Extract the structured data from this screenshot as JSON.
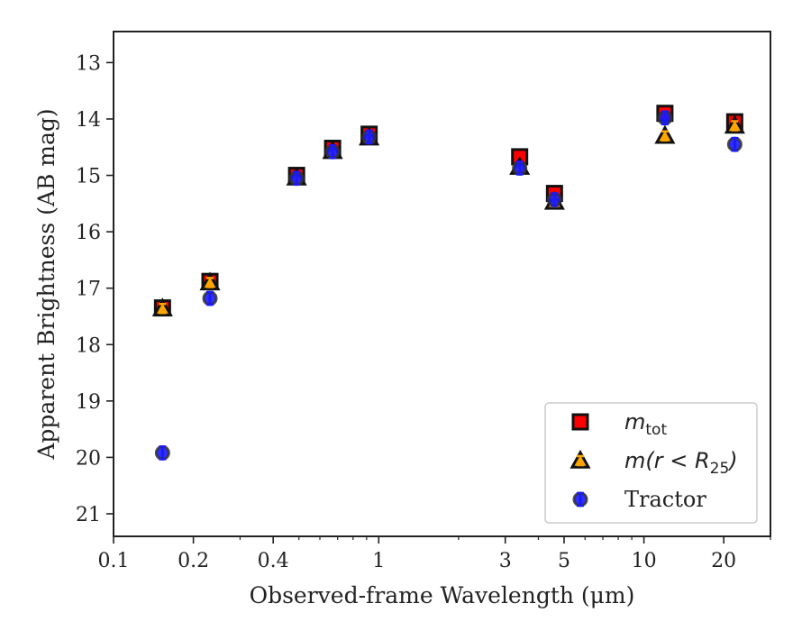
{
  "chart_data": {
    "type": "scatter",
    "x_scale": "log",
    "y_inverted": true,
    "xlabel": "Observed-frame Wavelength (μm)",
    "ylabel": "Apparent Brightness (AB mag)",
    "xlim": [
      0.1,
      30
    ],
    "ylim": [
      21.4,
      12.45
    ],
    "x_ticks": [
      {
        "value": 0.1,
        "label": "0.1"
      },
      {
        "value": 0.2,
        "label": "0.2"
      },
      {
        "value": 0.4,
        "label": "0.4"
      },
      {
        "value": 1,
        "label": "1"
      },
      {
        "value": 3,
        "label": "3"
      },
      {
        "value": 5,
        "label": "5"
      },
      {
        "value": 10,
        "label": "10"
      },
      {
        "value": 20,
        "label": "20"
      }
    ],
    "y_ticks": [
      13,
      14,
      15,
      16,
      17,
      18,
      19,
      20,
      21
    ],
    "grid": false,
    "legend": {
      "placement": "lower-right"
    },
    "series": [
      {
        "name": "m_tot",
        "legend_label": {
          "base": "m",
          "sub": "tot"
        },
        "marker": "square",
        "color": "#ff0000",
        "edge_color": "#111111",
        "error_color": "#ff0000",
        "points": [
          {
            "x": 0.153,
            "y": 17.35
          },
          {
            "x": 0.231,
            "y": 16.88
          },
          {
            "x": 0.49,
            "y": 15.0
          },
          {
            "x": 0.67,
            "y": 14.52
          },
          {
            "x": 0.92,
            "y": 14.27
          },
          {
            "x": 3.4,
            "y": 14.67
          },
          {
            "x": 4.6,
            "y": 15.32
          },
          {
            "x": 12.0,
            "y": 13.9
          },
          {
            "x": 22.0,
            "y": 14.05
          }
        ]
      },
      {
        "name": "m(r < R_25)",
        "legend_label": {
          "base": "m(r < R",
          "sub": "25",
          "tail": ")"
        },
        "marker": "triangle",
        "color": "#ffa500",
        "edge_color": "#111111",
        "error_color": "#ffa500",
        "points": [
          {
            "x": 0.153,
            "y": 17.36
          },
          {
            "x": 0.231,
            "y": 16.9
          },
          {
            "x": 0.49,
            "y": 15.04
          },
          {
            "x": 0.67,
            "y": 14.57
          },
          {
            "x": 0.92,
            "y": 14.33
          },
          {
            "x": 3.4,
            "y": 14.85
          },
          {
            "x": 4.6,
            "y": 15.47
          },
          {
            "x": 12.0,
            "y": 14.3
          },
          {
            "x": 22.0,
            "y": 14.12
          }
        ]
      },
      {
        "name": "Tractor",
        "legend_label": {
          "base": "Tractor"
        },
        "marker": "circle",
        "color": "#1a1aff",
        "edge_color": "#333333",
        "error_color": "#1a1aff",
        "points": [
          {
            "x": 0.153,
            "y": 19.92
          },
          {
            "x": 0.231,
            "y": 17.18
          },
          {
            "x": 0.49,
            "y": 15.05
          },
          {
            "x": 0.67,
            "y": 14.58
          },
          {
            "x": 0.92,
            "y": 14.32
          },
          {
            "x": 3.4,
            "y": 14.87
          },
          {
            "x": 4.6,
            "y": 15.43
          },
          {
            "x": 12.0,
            "y": 13.98
          },
          {
            "x": 22.0,
            "y": 14.45
          }
        ]
      }
    ]
  }
}
